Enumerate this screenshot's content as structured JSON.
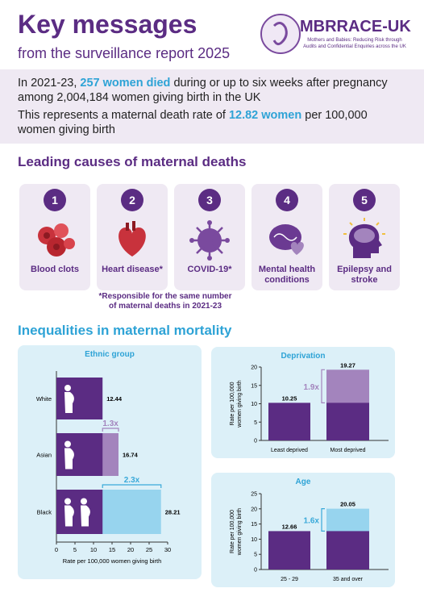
{
  "header": {
    "title": "Key messages",
    "subtitle": "from the surveillance report 2025",
    "logo": "MBRRACE-UK",
    "logo_tagline": [
      "Mothers and Babies: Reducing Risk through",
      "Audits and Confidential Enquiries across the UK"
    ]
  },
  "intro": {
    "p1": [
      "In 2021-23,",
      "257 women died",
      "during or up to six weeks after pregnancy among 2,004,184 women giving birth in the UK"
    ],
    "p2": [
      "This represents a maternal death rate of",
      "12.82 women",
      "per 100,000 women giving birth"
    ]
  },
  "causes": {
    "title": "Leading causes of maternal deaths",
    "items": [
      {
        "rank": 1,
        "label": "Blood clots"
      },
      {
        "rank": 2,
        "label": "Heart disease*"
      },
      {
        "rank": 3,
        "label": "COVID-19*"
      },
      {
        "rank": 4,
        "label": "Mental health conditions"
      },
      {
        "rank": 5,
        "label": "Epilepsy and stroke"
      }
    ],
    "note": "*Responsible for the same number of maternal deaths in 2021-23"
  },
  "inequalities": {
    "title": "Inequalities in maternal mortality",
    "charts": [
      {
        "type": "hbar",
        "title": "Ethnic group",
        "categories": [
          "White",
          "Asian",
          "Black"
        ],
        "values": [
          12.44,
          16.74,
          28.21
        ],
        "colors": [
          "#5b2c83",
          "#a384bd",
          "#97d4ee"
        ],
        "ratios": [
          null,
          "1.3x",
          "2.3x"
        ],
        "ratio_colors": [
          null,
          "#a384bd",
          "#3aa9d9"
        ],
        "xlim": [
          0,
          30
        ],
        "xticks": [
          0,
          5,
          10,
          15,
          20,
          25,
          30
        ],
        "xlabel": "Rate per 100,000 women giving birth"
      },
      {
        "type": "bar",
        "title": "Deprivation",
        "categories": [
          "Least deprived",
          "Most deprived"
        ],
        "values": [
          10.25,
          19.27
        ],
        "colors": [
          "#5b2c83",
          "#a384bd"
        ],
        "ratios": [
          null,
          "1.9x"
        ],
        "ratio_colors": [
          null,
          "#a384bd"
        ],
        "ylim": [
          0,
          20
        ],
        "yticks": [
          0,
          5,
          10,
          15,
          20
        ],
        "ylabel": [
          "Rate per 100,000",
          "women giving birth"
        ]
      },
      {
        "type": "bar",
        "title": "Age",
        "categories": [
          "25 - 29",
          "35 and over"
        ],
        "values": [
          12.66,
          20.05
        ],
        "colors": [
          "#5b2c83",
          "#97d4ee"
        ],
        "ratios": [
          null,
          "1.6x"
        ],
        "ratio_colors": [
          null,
          "#3aa9d9"
        ],
        "ylim": [
          0,
          25
        ],
        "yticks": [
          0,
          5,
          10,
          15,
          20,
          25
        ],
        "ylabel": [
          "Rate per 100,000",
          "women giving birth"
        ]
      }
    ]
  }
}
